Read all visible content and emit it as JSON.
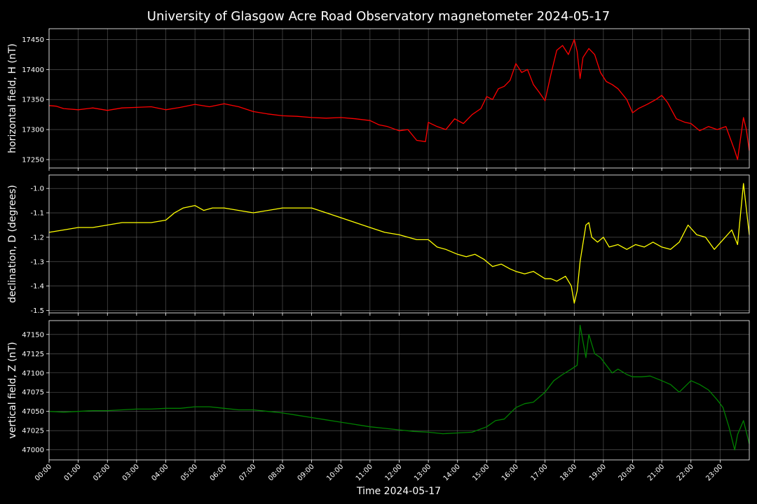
{
  "chart_data": {
    "type": "line",
    "title": "University of Glasgow Acre Road Observatory magnetometer 2024-05-17",
    "xlabel": "Time 2024-05-17",
    "xlim": [
      0,
      24
    ],
    "grid": true,
    "background": "#000000",
    "x_ticks": [
      "00:00",
      "01:00",
      "02:00",
      "03:00",
      "04:00",
      "05:00",
      "06:00",
      "07:00",
      "08:00",
      "09:00",
      "10:00",
      "11:00",
      "12:00",
      "13:00",
      "14:00",
      "15:00",
      "16:00",
      "17:00",
      "18:00",
      "19:00",
      "20:00",
      "21:00",
      "22:00",
      "23:00"
    ],
    "panels": [
      {
        "ylabel": "horizontal field, H (nT)",
        "color": "#ff0000",
        "ylim": [
          17236,
          17468
        ],
        "y_ticks": [
          17250,
          17300,
          17350,
          17400,
          17450
        ],
        "x": [
          0,
          0.25,
          0.5,
          1,
          1.5,
          2,
          2.5,
          3,
          3.5,
          4,
          4.5,
          5,
          5.5,
          6,
          6.5,
          7,
          7.5,
          8,
          8.5,
          9,
          9.5,
          10,
          10.5,
          11,
          11.3,
          11.6,
          12,
          12.3,
          12.6,
          12.9,
          13,
          13.3,
          13.6,
          13.9,
          14.2,
          14.5,
          14.8,
          15,
          15.2,
          15.4,
          15.6,
          15.8,
          16,
          16.2,
          16.4,
          16.6,
          16.8,
          17,
          17.2,
          17.4,
          17.6,
          17.8,
          18,
          18.1,
          18.2,
          18.3,
          18.5,
          18.7,
          18.9,
          19.1,
          19.3,
          19.5,
          19.8,
          20,
          20.2,
          20.5,
          20.8,
          21,
          21.2,
          21.5,
          21.8,
          22,
          22.3,
          22.6,
          22.9,
          23.2,
          23.5,
          23.6,
          23.8,
          23.9,
          24
        ],
        "values": [
          17340,
          17339,
          17335,
          17333,
          17336,
          17332,
          17336,
          17337,
          17338,
          17333,
          17337,
          17342,
          17338,
          17343,
          17338,
          17330,
          17326,
          17323,
          17322,
          17320,
          17319,
          17320,
          17318,
          17315,
          17308,
          17305,
          17298,
          17300,
          17282,
          17280,
          17312,
          17305,
          17300,
          17318,
          17310,
          17325,
          17335,
          17355,
          17350,
          17368,
          17372,
          17382,
          17410,
          17395,
          17400,
          17375,
          17362,
          17348,
          17392,
          17432,
          17440,
          17425,
          17450,
          17430,
          17385,
          17420,
          17435,
          17425,
          17395,
          17380,
          17375,
          17368,
          17350,
          17328,
          17335,
          17342,
          17350,
          17357,
          17345,
          17318,
          17312,
          17310,
          17298,
          17305,
          17300,
          17305,
          17265,
          17250,
          17320,
          17300,
          17265
        ]
      },
      {
        "ylabel": "declination, D (degrees)",
        "color": "#ffff00",
        "ylim": [
          -1.51,
          -0.945
        ],
        "y_ticks": [
          -1.0,
          -1.1,
          -1.2,
          -1.3,
          -1.4,
          -1.5
        ],
        "x": [
          0,
          0.5,
          1,
          1.5,
          2,
          2.5,
          3,
          3.5,
          4,
          4.3,
          4.6,
          5,
          5.3,
          5.6,
          6,
          6.5,
          7,
          7.5,
          8,
          8.5,
          9,
          9.5,
          10,
          10.5,
          11,
          11.5,
          12,
          12.3,
          12.6,
          13,
          13.3,
          13.6,
          14,
          14.3,
          14.6,
          14.9,
          15.2,
          15.5,
          15.8,
          16,
          16.3,
          16.6,
          17,
          17.2,
          17.4,
          17.7,
          17.9,
          18,
          18.1,
          18.2,
          18.4,
          18.5,
          18.6,
          18.8,
          19,
          19.2,
          19.5,
          19.8,
          20.1,
          20.4,
          20.7,
          21,
          21.3,
          21.6,
          21.9,
          22.2,
          22.5,
          22.8,
          23.1,
          23.4,
          23.6,
          23.8,
          24
        ],
        "values": [
          -1.18,
          -1.17,
          -1.16,
          -1.16,
          -1.15,
          -1.14,
          -1.14,
          -1.14,
          -1.13,
          -1.1,
          -1.08,
          -1.07,
          -1.09,
          -1.08,
          -1.08,
          -1.09,
          -1.1,
          -1.09,
          -1.08,
          -1.08,
          -1.08,
          -1.1,
          -1.12,
          -1.14,
          -1.16,
          -1.18,
          -1.19,
          -1.2,
          -1.21,
          -1.21,
          -1.24,
          -1.25,
          -1.27,
          -1.28,
          -1.27,
          -1.29,
          -1.32,
          -1.31,
          -1.33,
          -1.34,
          -1.35,
          -1.34,
          -1.37,
          -1.37,
          -1.38,
          -1.36,
          -1.4,
          -1.47,
          -1.42,
          -1.3,
          -1.15,
          -1.14,
          -1.2,
          -1.22,
          -1.2,
          -1.24,
          -1.23,
          -1.25,
          -1.23,
          -1.24,
          -1.22,
          -1.24,
          -1.25,
          -1.22,
          -1.15,
          -1.19,
          -1.2,
          -1.25,
          -1.21,
          -1.17,
          -1.23,
          -0.98,
          -1.19
        ]
      },
      {
        "ylabel": "vertical field, Z (nT)",
        "color": "#008000",
        "ylim": [
          46987,
          47168
        ],
        "y_ticks": [
          47000,
          47025,
          47050,
          47075,
          47100,
          47125,
          47150
        ],
        "x": [
          0,
          0.5,
          1,
          1.5,
          2,
          2.5,
          3,
          3.5,
          4,
          4.5,
          5,
          5.5,
          6,
          6.5,
          7,
          7.5,
          8,
          8.5,
          9,
          9.5,
          10,
          10.5,
          11,
          11.5,
          12,
          12.5,
          13,
          13.5,
          14,
          14.5,
          15,
          15.3,
          15.6,
          16,
          16.3,
          16.6,
          17,
          17.3,
          17.6,
          17.9,
          18.1,
          18.2,
          18.4,
          18.5,
          18.7,
          18.9,
          19.1,
          19.3,
          19.5,
          19.8,
          20,
          20.3,
          20.6,
          21,
          21.3,
          21.6,
          22,
          22.3,
          22.6,
          22.9,
          23.1,
          23.3,
          23.5,
          23.6,
          23.8,
          24
        ],
        "values": [
          47050,
          47049,
          47050,
          47051,
          47051,
          47052,
          47053,
          47053,
          47054,
          47054,
          47056,
          47056,
          47054,
          47052,
          47052,
          47050,
          47048,
          47045,
          47042,
          47039,
          47036,
          47033,
          47030,
          47028,
          47026,
          47024,
          47023,
          47021,
          47022,
          47023,
          47030,
          47038,
          47040,
          47055,
          47060,
          47062,
          47075,
          47090,
          47098,
          47105,
          47110,
          47162,
          47120,
          47150,
          47125,
          47120,
          47110,
          47100,
          47105,
          47098,
          47095,
          47095,
          47096,
          47090,
          47085,
          47075,
          47090,
          47085,
          47078,
          47065,
          47055,
          47030,
          47000,
          47020,
          47038,
          47008
        ]
      }
    ]
  }
}
